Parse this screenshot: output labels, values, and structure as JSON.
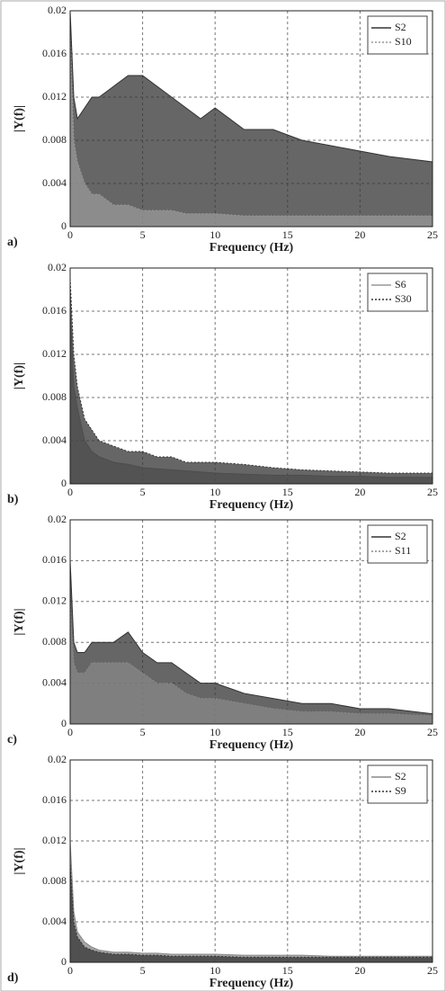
{
  "chart_data": [
    {
      "type": "area",
      "panel_label": "a)",
      "xlabel": "Frequency (Hz)",
      "ylabel": "|Y(f)|",
      "x": [
        0,
        0.25,
        0.5,
        1,
        1.5,
        2,
        3,
        4,
        5,
        6,
        7,
        8,
        9,
        10,
        12,
        14,
        16,
        18,
        20,
        22,
        25
      ],
      "series": [
        {
          "name": "S2",
          "color": "#333333",
          "dashed": false,
          "values": [
            0.02,
            0.012,
            0.01,
            0.011,
            0.012,
            0.012,
            0.013,
            0.014,
            0.014,
            0.013,
            0.012,
            0.011,
            0.01,
            0.011,
            0.009,
            0.009,
            0.008,
            0.0075,
            0.007,
            0.0065,
            0.006
          ]
        },
        {
          "name": "S10",
          "color": "#999999",
          "dashed": true,
          "values": [
            0.018,
            0.008,
            0.006,
            0.004,
            0.003,
            0.003,
            0.002,
            0.002,
            0.0015,
            0.0015,
            0.0015,
            0.0012,
            0.0012,
            0.0012,
            0.001,
            0.001,
            0.001,
            0.001,
            0.001,
            0.001,
            0.001
          ]
        }
      ],
      "xlim": [
        0,
        25
      ],
      "xticks": [
        0,
        5,
        10,
        15,
        20,
        25
      ],
      "ylim": [
        0,
        0.02
      ],
      "yticks": [
        0,
        0.004,
        0.008,
        0.012,
        0.016,
        0.02
      ],
      "grid": true,
      "legend": "upper-right"
    },
    {
      "type": "area",
      "panel_label": "b)",
      "xlabel": "Frequency (Hz)",
      "ylabel": "|Y(f)|",
      "x": [
        0,
        0.25,
        0.5,
        1,
        1.5,
        2,
        3,
        4,
        5,
        6,
        7,
        8,
        9,
        10,
        12,
        14,
        16,
        18,
        20,
        22,
        25
      ],
      "series": [
        {
          "name": "S6",
          "color": "#999999",
          "dashed": false,
          "values": [
            0.016,
            0.009,
            0.007,
            0.004,
            0.003,
            0.0025,
            0.002,
            0.0018,
            0.0015,
            0.0014,
            0.0013,
            0.0012,
            0.0011,
            0.001,
            0.0009,
            0.0008,
            0.0008,
            0.0007,
            0.0007,
            0.0006,
            0.0006
          ]
        },
        {
          "name": "S30",
          "color": "#333333",
          "dashed": true,
          "values": [
            0.019,
            0.012,
            0.009,
            0.006,
            0.005,
            0.004,
            0.0035,
            0.003,
            0.003,
            0.0025,
            0.0025,
            0.002,
            0.002,
            0.002,
            0.0018,
            0.0015,
            0.0013,
            0.0012,
            0.0011,
            0.001,
            0.001
          ]
        }
      ],
      "xlim": [
        0,
        25
      ],
      "xticks": [
        0,
        5,
        10,
        15,
        20,
        25
      ],
      "ylim": [
        0,
        0.02
      ],
      "yticks": [
        0,
        0.004,
        0.008,
        0.012,
        0.016,
        0.02
      ],
      "grid": true,
      "legend": "upper-right"
    },
    {
      "type": "area",
      "panel_label": "c)",
      "xlabel": "Frequency (Hz)",
      "ylabel": "|Y(f)|",
      "x": [
        0,
        0.25,
        0.5,
        1,
        1.5,
        2,
        3,
        4,
        5,
        6,
        7,
        8,
        9,
        10,
        12,
        14,
        16,
        18,
        20,
        22,
        25
      ],
      "series": [
        {
          "name": "S2",
          "color": "#333333",
          "dashed": false,
          "values": [
            0.016,
            0.008,
            0.007,
            0.007,
            0.008,
            0.008,
            0.008,
            0.009,
            0.007,
            0.006,
            0.006,
            0.005,
            0.004,
            0.004,
            0.003,
            0.0025,
            0.002,
            0.002,
            0.0015,
            0.0015,
            0.001
          ]
        },
        {
          "name": "S11",
          "color": "#888888",
          "dashed": true,
          "values": [
            0.012,
            0.006,
            0.005,
            0.005,
            0.006,
            0.006,
            0.006,
            0.006,
            0.005,
            0.004,
            0.004,
            0.003,
            0.0025,
            0.0025,
            0.002,
            0.0015,
            0.0012,
            0.0012,
            0.001,
            0.001,
            0.0008
          ]
        }
      ],
      "xlim": [
        0,
        25
      ],
      "xticks": [
        0,
        5,
        10,
        15,
        20,
        25
      ],
      "ylim": [
        0,
        0.02
      ],
      "yticks": [
        0,
        0.004,
        0.008,
        0.012,
        0.016,
        0.02
      ],
      "grid": true,
      "legend": "upper-right"
    },
    {
      "type": "area",
      "panel_label": "d)",
      "xlabel": "Frequency (Hz)",
      "ylabel": "|Y(f)|",
      "x": [
        0,
        0.25,
        0.5,
        1,
        1.5,
        2,
        3,
        4,
        5,
        6,
        7,
        8,
        9,
        10,
        12,
        14,
        16,
        18,
        20,
        22,
        25
      ],
      "series": [
        {
          "name": "S2",
          "color": "#888888",
          "dashed": false,
          "values": [
            0.012,
            0.005,
            0.003,
            0.002,
            0.0015,
            0.0012,
            0.001,
            0.001,
            0.0009,
            0.0009,
            0.0008,
            0.0008,
            0.0008,
            0.0008,
            0.0007,
            0.0007,
            0.0007,
            0.0006,
            0.0006,
            0.0006,
            0.0006
          ]
        },
        {
          "name": "S9",
          "color": "#333333",
          "dashed": true,
          "values": [
            0.01,
            0.004,
            0.0025,
            0.0015,
            0.0012,
            0.001,
            0.0008,
            0.0008,
            0.0007,
            0.0007,
            0.0006,
            0.0006,
            0.0006,
            0.0006,
            0.0005,
            0.0005,
            0.0005,
            0.0005,
            0.0005,
            0.0005,
            0.0005
          ]
        }
      ],
      "xlim": [
        0,
        25
      ],
      "xticks": [
        0,
        5,
        10,
        15,
        20,
        25
      ],
      "ylim": [
        0,
        0.02
      ],
      "yticks": [
        0,
        0.004,
        0.008,
        0.012,
        0.016,
        0.02
      ],
      "grid": true,
      "legend": "upper-right"
    }
  ]
}
